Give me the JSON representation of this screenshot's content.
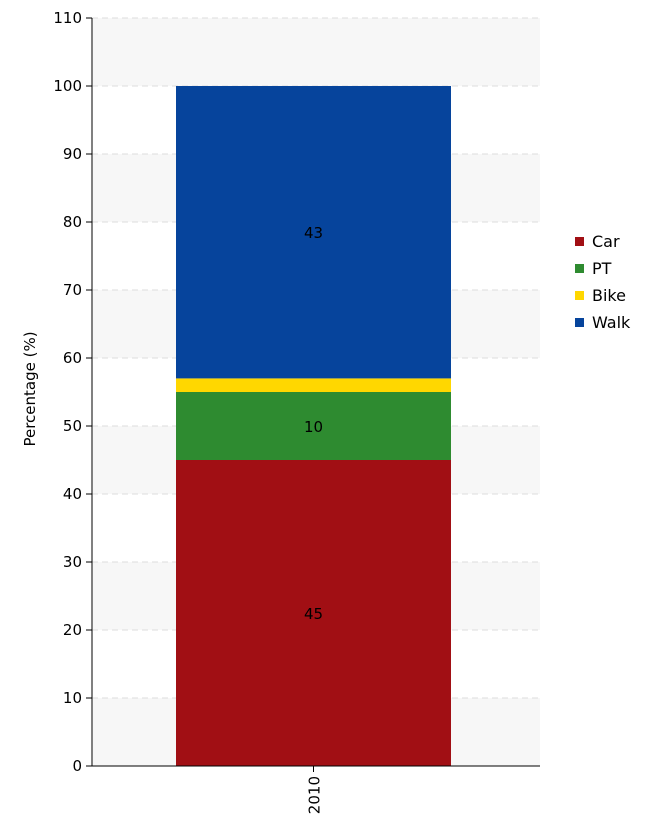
{
  "chart_data": {
    "type": "bar",
    "stacked": true,
    "categories": [
      "2010"
    ],
    "series": [
      {
        "name": "Car",
        "values": [
          45
        ],
        "color": "#a10f14"
      },
      {
        "name": "PT",
        "values": [
          10
        ],
        "color": "#2e8b30"
      },
      {
        "name": "Bike",
        "values": [
          2
        ],
        "color": "#ffd700"
      },
      {
        "name": "Walk",
        "values": [
          43
        ],
        "color": "#06449c"
      }
    ],
    "data_labels": [
      "45",
      "10",
      "",
      "43"
    ],
    "title": "",
    "xlabel": "",
    "ylabel": "Percentage (%)",
    "ylim": [
      0,
      110
    ],
    "yticks": [
      "0",
      "10",
      "20",
      "30",
      "40",
      "50",
      "60",
      "70",
      "80",
      "90",
      "100",
      "110"
    ],
    "grid": true,
    "legend_position": "right"
  }
}
